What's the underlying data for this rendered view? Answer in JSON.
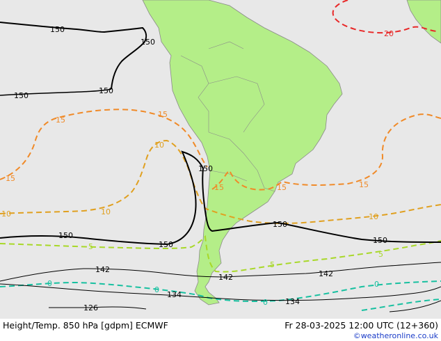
{
  "footer": {
    "title": "Height/Temp. 850 hPa [gdpm] ECMWF",
    "valid_time": "Fr 28-03-2025 12:00 UTC (12+360)",
    "credit": "©weatheronline.co.uk"
  },
  "colors": {
    "ocean": "#e8e8e8",
    "land": "#b4ee88",
    "land_edge": "#8a8a8a",
    "height_contour": "#000000",
    "temp_20": "#e82828",
    "temp_15": "#f08a28",
    "temp_10": "#e0a020",
    "temp_5": "#a8d828",
    "temp_0": "#18c0a0"
  },
  "labels": {
    "h150_a": "150",
    "h150_b": "150",
    "h150_c": "150",
    "h150_d": "150",
    "h150_e": "150",
    "h150_f": "150",
    "h150_g": "150",
    "h150_h": "150",
    "h150_i": "150",
    "h142_a": "142",
    "h142_b": "142",
    "h142_c": "142",
    "h134_a": "134",
    "h134_b": "134",
    "h126": "126",
    "t20": "20",
    "t15_a": "15",
    "t15_b": "15",
    "t15_c": "15",
    "t15_d": "15",
    "t15_e": "15",
    "t15_f": "15",
    "t10_a": "10",
    "t10_b": "10",
    "t10_c": "10",
    "t10_d": "10",
    "t5_a": "5",
    "t5_b": "5",
    "t5_c": "5",
    "t0_a": "0",
    "t0_b": "0",
    "t0_c": "0",
    "t0_d": "0"
  }
}
